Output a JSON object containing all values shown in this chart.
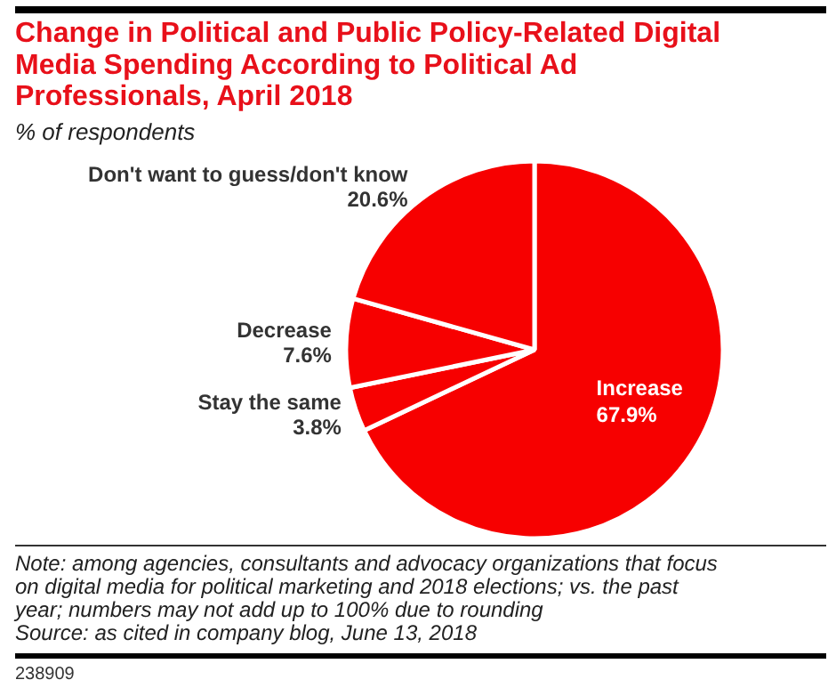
{
  "chart_data": {
    "type": "pie",
    "title": "Change in Political and Public Policy-Related Digital Media Spending According to Political Ad Professionals, April 2018",
    "subtitle": "% of respondents",
    "categories": [
      "Increase",
      "Stay the same",
      "Decrease",
      "Don't want to guess/don't know"
    ],
    "values": [
      67.9,
      3.8,
      7.6,
      20.6
    ],
    "value_labels": [
      "67.9%",
      "3.8%",
      "7.6%",
      "20.6%"
    ],
    "colors": [
      "#f70000",
      "#f70000",
      "#f70000",
      "#f70000"
    ],
    "annotations": [
      "Note: among agencies, consultants and advocacy organizations that focus on digital media for political marketing and 2018 elections; vs. the past year; numbers may not add up to 100% due to rounding",
      "Source: as cited in company blog, June 13, 2018",
      "238909"
    ]
  }
}
